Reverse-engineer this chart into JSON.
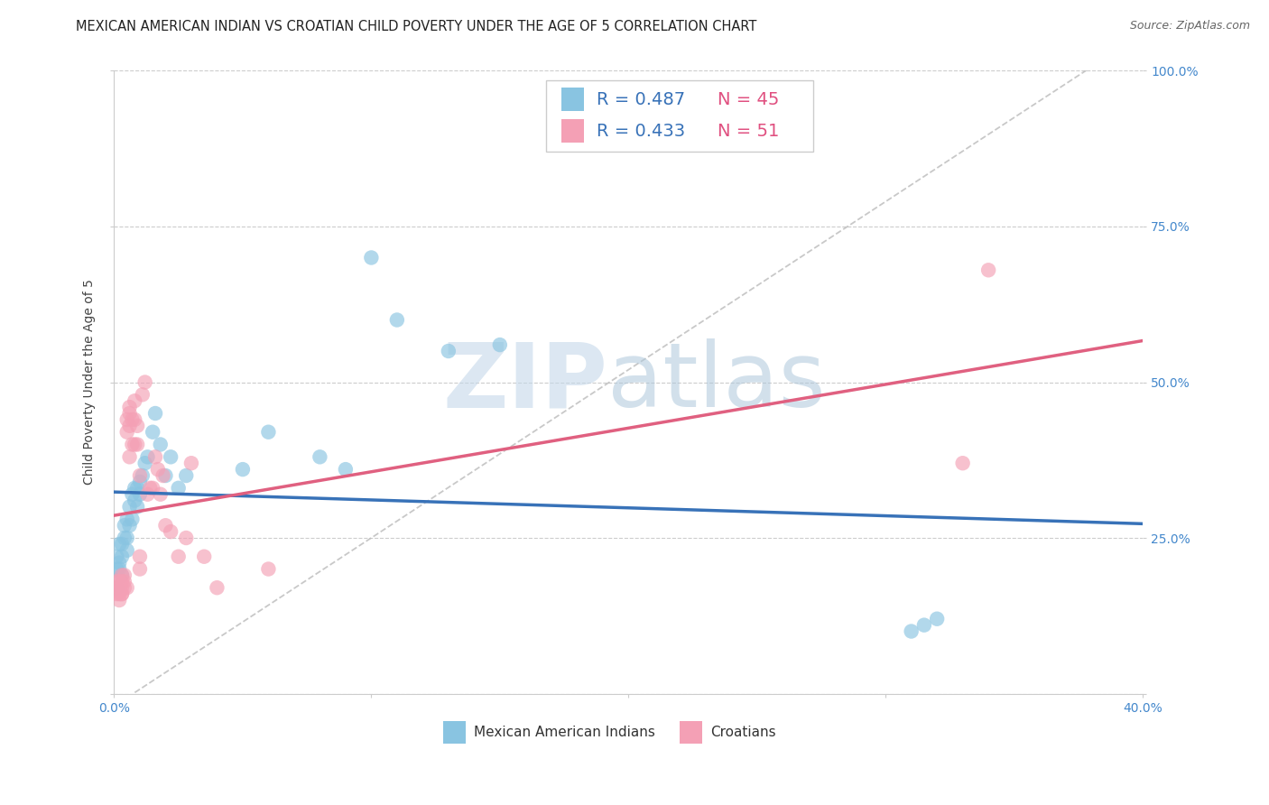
{
  "title": "MEXICAN AMERICAN INDIAN VS CROATIAN CHILD POVERTY UNDER THE AGE OF 5 CORRELATION CHART",
  "source": "Source: ZipAtlas.com",
  "ylabel": "Child Poverty Under the Age of 5",
  "xlim": [
    0.0,
    0.4
  ],
  "ylim": [
    0.0,
    1.0
  ],
  "xticks": [
    0.0,
    0.1,
    0.2,
    0.3,
    0.4
  ],
  "xticklabels": [
    "0.0%",
    "",
    "",
    "",
    "40.0%"
  ],
  "yticks": [
    0.0,
    0.25,
    0.5,
    0.75,
    1.0
  ],
  "yticklabels": [
    "",
    "25.0%",
    "50.0%",
    "75.0%",
    "100.0%"
  ],
  "blue_R": 0.487,
  "blue_N": 45,
  "pink_R": 0.433,
  "pink_N": 51,
  "blue_label": "Mexican American Indians",
  "pink_label": "Croatians",
  "blue_color": "#89c4e1",
  "pink_color": "#f4a0b5",
  "blue_line_color": "#3872b8",
  "pink_line_color": "#e06080",
  "background_color": "#ffffff",
  "grid_color": "#cccccc",
  "tick_color": "#4488cc",
  "blue_x": [
    0.001,
    0.001,
    0.001,
    0.002,
    0.002,
    0.002,
    0.003,
    0.003,
    0.003,
    0.004,
    0.004,
    0.005,
    0.005,
    0.005,
    0.006,
    0.006,
    0.007,
    0.007,
    0.008,
    0.008,
    0.009,
    0.009,
    0.01,
    0.01,
    0.011,
    0.012,
    0.013,
    0.015,
    0.016,
    0.018,
    0.02,
    0.022,
    0.025,
    0.028,
    0.05,
    0.06,
    0.08,
    0.09,
    0.1,
    0.11,
    0.13,
    0.15,
    0.31,
    0.315,
    0.32
  ],
  "blue_y": [
    0.2,
    0.22,
    0.17,
    0.21,
    0.24,
    0.2,
    0.22,
    0.24,
    0.19,
    0.25,
    0.27,
    0.25,
    0.28,
    0.23,
    0.3,
    0.27,
    0.32,
    0.28,
    0.33,
    0.31,
    0.33,
    0.3,
    0.34,
    0.32,
    0.35,
    0.37,
    0.38,
    0.42,
    0.45,
    0.4,
    0.35,
    0.38,
    0.33,
    0.35,
    0.36,
    0.42,
    0.38,
    0.36,
    0.7,
    0.6,
    0.55,
    0.56,
    0.1,
    0.11,
    0.12
  ],
  "pink_x": [
    0.001,
    0.001,
    0.001,
    0.002,
    0.002,
    0.002,
    0.002,
    0.003,
    0.003,
    0.003,
    0.003,
    0.003,
    0.004,
    0.004,
    0.004,
    0.005,
    0.005,
    0.005,
    0.006,
    0.006,
    0.006,
    0.006,
    0.007,
    0.007,
    0.008,
    0.008,
    0.008,
    0.009,
    0.009,
    0.01,
    0.01,
    0.01,
    0.011,
    0.012,
    0.013,
    0.014,
    0.015,
    0.016,
    0.017,
    0.018,
    0.019,
    0.02,
    0.022,
    0.025,
    0.028,
    0.03,
    0.035,
    0.04,
    0.06,
    0.33,
    0.34
  ],
  "pink_y": [
    0.16,
    0.18,
    0.17,
    0.16,
    0.18,
    0.15,
    0.17,
    0.17,
    0.16,
    0.18,
    0.19,
    0.16,
    0.19,
    0.17,
    0.18,
    0.42,
    0.44,
    0.17,
    0.43,
    0.45,
    0.46,
    0.38,
    0.44,
    0.4,
    0.44,
    0.47,
    0.4,
    0.43,
    0.4,
    0.22,
    0.35,
    0.2,
    0.48,
    0.5,
    0.32,
    0.33,
    0.33,
    0.38,
    0.36,
    0.32,
    0.35,
    0.27,
    0.26,
    0.22,
    0.25,
    0.37,
    0.22,
    0.17,
    0.2,
    0.37,
    0.68
  ],
  "title_fontsize": 10.5,
  "source_fontsize": 9,
  "axis_label_fontsize": 10,
  "tick_fontsize": 10,
  "legend_fontsize": 14
}
